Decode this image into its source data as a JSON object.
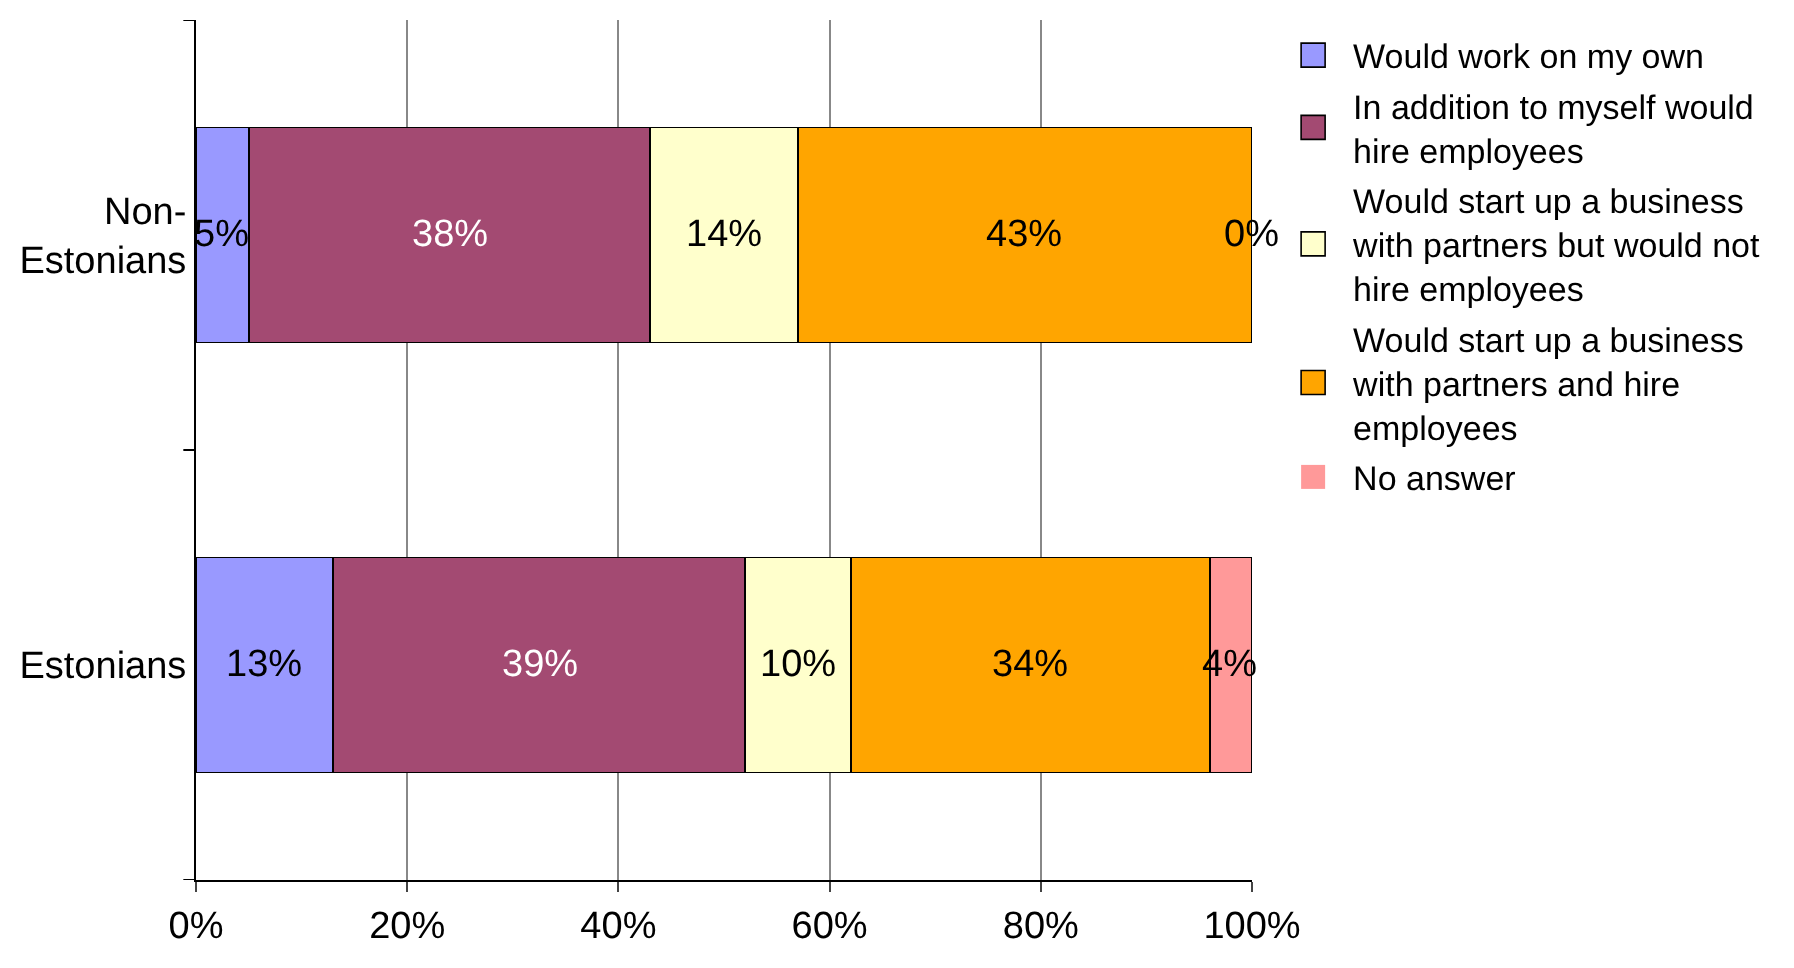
{
  "chart_data": {
    "type": "bar",
    "orientation": "horizontal",
    "stacked": true,
    "categories": [
      "Non-Estonians",
      "Estonians"
    ],
    "series": [
      {
        "name": "Would work on my own",
        "color": "#9999ff",
        "values": [
          5,
          13
        ],
        "value_labels": [
          "5%",
          "13%"
        ]
      },
      {
        "name": "In addition to myself would hire employees",
        "color": "#a34a72",
        "values": [
          38,
          39
        ],
        "value_labels": [
          "38%",
          "39%"
        ]
      },
      {
        "name": "Would start up a business with partners but would not hire employees",
        "color": "#ffffcc",
        "values": [
          14,
          10
        ],
        "value_labels": [
          "14%",
          "10%"
        ]
      },
      {
        "name": "Would start up a business with partners and hire employees",
        "color": "#ffa500",
        "values": [
          43,
          34
        ],
        "value_labels": [
          "43%",
          "34%"
        ]
      },
      {
        "name": "No answer",
        "color": "#ff9999",
        "values": [
          0,
          4
        ],
        "value_labels": [
          "0%",
          "4%"
        ]
      }
    ],
    "xlim": [
      0,
      100
    ],
    "xticks": [
      {
        "value": 0,
        "label": "0%"
      },
      {
        "value": 20,
        "label": "20%"
      },
      {
        "value": 40,
        "label": "40%"
      },
      {
        "value": 60,
        "label": "60%"
      },
      {
        "value": 80,
        "label": "80%"
      },
      {
        "value": 100,
        "label": "100%"
      }
    ],
    "grid": "x",
    "legend": "right"
  }
}
